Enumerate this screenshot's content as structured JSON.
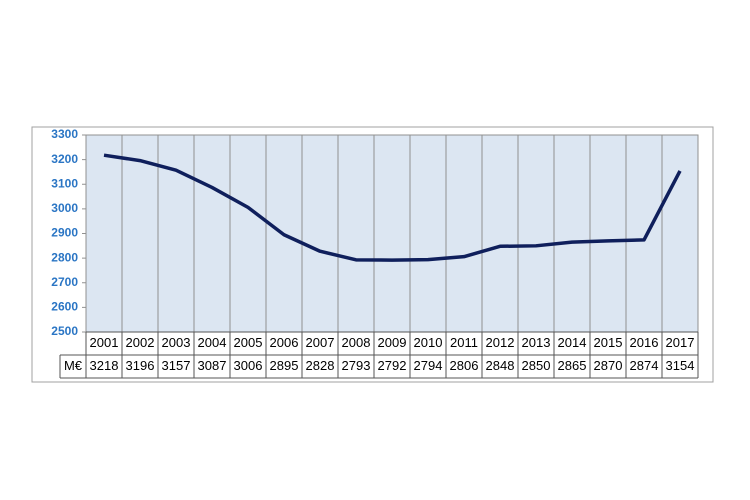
{
  "chart_data": {
    "type": "line",
    "categories": [
      "2001",
      "2002",
      "2003",
      "2004",
      "2005",
      "2006",
      "2007",
      "2008",
      "2009",
      "2010",
      "2011",
      "2012",
      "2013",
      "2014",
      "2015",
      "2016",
      "2017"
    ],
    "series": [
      {
        "name": "M€",
        "color": "#0f1f5c",
        "values": [
          3218,
          3196,
          3157,
          3087,
          3006,
          2895,
          2828,
          2793,
          2792,
          2794,
          2806,
          2848,
          2850,
          2865,
          2870,
          2874,
          3154
        ]
      }
    ],
    "ylim": [
      2500,
      3300
    ],
    "yticks": [
      2500,
      2600,
      2700,
      2800,
      2900,
      3000,
      3100,
      3200,
      3300
    ],
    "grid": "vertical",
    "plot_background": "#dce6f2",
    "data_table": true
  }
}
